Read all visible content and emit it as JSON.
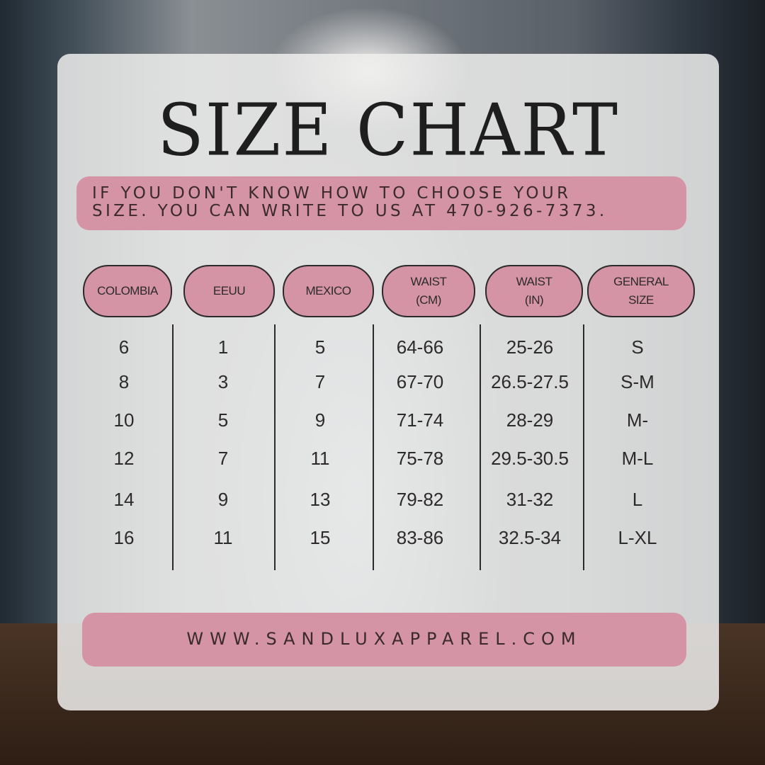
{
  "title": "SIZE CHART",
  "info": "IF YOU DON'T KNOW HOW TO CHOOSE YOUR\nSIZE. YOU CAN WRITE TO US AT 470-926-7373.",
  "colors": {
    "accent_pink": "#d494a5",
    "text": "#2d2a2b",
    "panel": "#eeeeec"
  },
  "headers": [
    "COLOMBIA",
    "EEUU",
    "MEXICO",
    "WAIST\n(CM)",
    "WAIST\n(IN)",
    "GENERAL\nSIZE"
  ],
  "rows": [
    [
      "6",
      "1",
      "5",
      "64-66",
      "25-26",
      "S"
    ],
    [
      "8",
      "3",
      "7",
      "67-70",
      "26.5-27.5",
      "S-M"
    ],
    [
      "10",
      "5",
      "9",
      "71-74",
      "28-29",
      "M-"
    ],
    [
      "12",
      "7",
      "11",
      "75-78",
      "29.5-30.5",
      "M-L"
    ],
    [
      "14",
      "9",
      "13",
      "79-82",
      "31-32",
      "L"
    ],
    [
      "16",
      "11",
      "15",
      "83-86",
      "32.5-34",
      "L-XL"
    ]
  ],
  "footer": "WWW.SANDLUXAPPAREL.COM"
}
